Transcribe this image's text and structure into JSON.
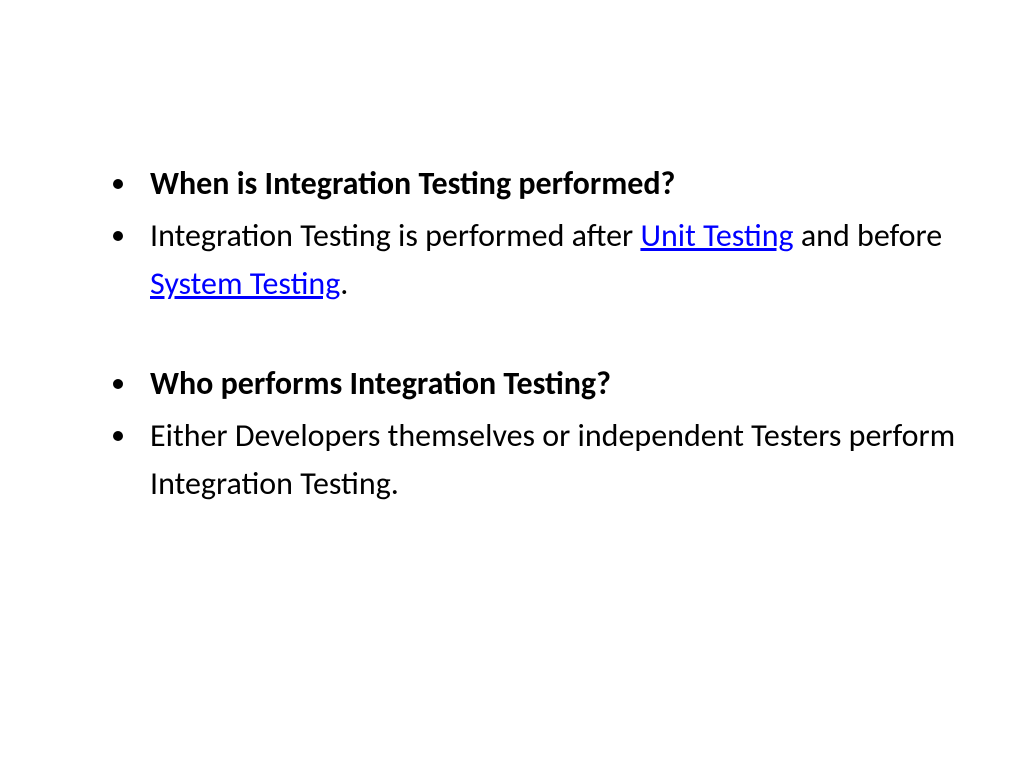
{
  "slide": {
    "bullets": [
      {
        "bold": true,
        "text": "When is Integration Testing performed?"
      },
      {
        "bold": false,
        "segments": [
          {
            "text": "Integration Testing is performed after ",
            "link": false
          },
          {
            "text": "Unit Testing",
            "link": true
          },
          {
            "text": " and before ",
            "link": false
          },
          {
            "text": "System Testing",
            "link": true
          },
          {
            "text": ".",
            "link": false
          }
        ]
      },
      {
        "bold": true,
        "text": "Who performs Integration Testing?"
      },
      {
        "bold": false,
        "text": "Either Developers themselves or independent Testers perform Integration Testing."
      }
    ],
    "styling": {
      "background_color": "#ffffff",
      "text_color": "#000000",
      "link_color": "#0000ff",
      "font_family": "Calibri, Arial, sans-serif",
      "font_size_pt": 24,
      "bold_weight": 700,
      "line_height": 1.5
    }
  }
}
